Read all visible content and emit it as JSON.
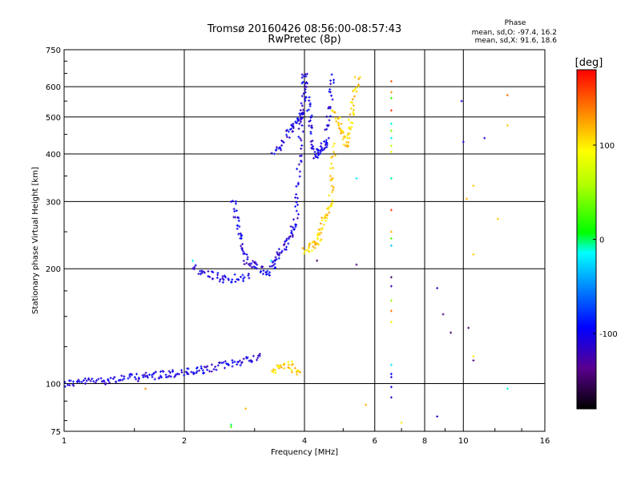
{
  "chart_data": {
    "type": "scatter",
    "title": "Tromsø 20160426 08:56:00-08:57:43",
    "subtitle": "RwPretec (8p)",
    "xlabel": "Frequency [MHz]",
    "ylabel": "Stationary phase Virtual Height [km]",
    "x_scale": "log",
    "y_scale": "log",
    "xlim": [
      1,
      16
    ],
    "ylim": [
      75,
      750
    ],
    "x_ticks": [
      1,
      2,
      4,
      6,
      8,
      10,
      16
    ],
    "x_tick_labels": [
      "1",
      "2",
      "4",
      "6",
      "8",
      "10",
      "16"
    ],
    "y_ticks": [
      75,
      100,
      200,
      300,
      400,
      500,
      600,
      750
    ],
    "y_tick_labels": [
      "75",
      "100",
      "200",
      "300",
      "400",
      "500",
      "600",
      "750"
    ],
    "grid": true,
    "phase_stats": {
      "title": "Phase",
      "o_line": "mean, sd,O: -97.4, 16.2",
      "x_line": "mean, sd,X:  91.6, 18.6"
    },
    "colorbar": {
      "label": "[deg]",
      "range": [
        -180,
        180
      ],
      "ticks": [
        100,
        0,
        -100
      ],
      "tick_labels": [
        "100",
        "0",
        "-100"
      ]
    },
    "series": [
      {
        "mode": "segments",
        "phase": -105,
        "segments": [
          {
            "f0": 1.0,
            "f1": 1.55,
            "h0": 100,
            "h1": 104,
            "n": 60
          },
          {
            "f0": 1.55,
            "f1": 2.2,
            "h0": 104,
            "h1": 108,
            "n": 55
          },
          {
            "f0": 2.2,
            "f1": 3.1,
            "h0": 108,
            "h1": 118,
            "n": 50
          },
          {
            "f0": 2.1,
            "f1": 2.5,
            "h0": 200,
            "h1": 188,
            "n": 25
          },
          {
            "f0": 2.5,
            "f1": 2.9,
            "h0": 188,
            "h1": 190,
            "n": 22
          },
          {
            "f0": 2.65,
            "f1": 2.85,
            "h0": 300,
            "h1": 210,
            "n": 35
          },
          {
            "f0": 2.85,
            "f1": 3.3,
            "h0": 210,
            "h1": 193,
            "n": 30
          },
          {
            "f0": 3.3,
            "f1": 3.8,
            "h0": 200,
            "h1": 260,
            "n": 45
          },
          {
            "f0": 3.8,
            "f1": 4.0,
            "h0": 260,
            "h1": 650,
            "n": 45
          },
          {
            "f0": 3.35,
            "f1": 3.7,
            "h0": 400,
            "h1": 460,
            "n": 20
          },
          {
            "f0": 3.7,
            "f1": 4.0,
            "h0": 460,
            "h1": 520,
            "n": 30
          },
          {
            "f0": 4.0,
            "f1": 4.25,
            "h0": 650,
            "h1": 395,
            "n": 40
          },
          {
            "f0": 4.25,
            "f1": 4.55,
            "h0": 395,
            "h1": 430,
            "n": 30
          },
          {
            "f0": 4.55,
            "f1": 4.7,
            "h0": 430,
            "h1": 640,
            "n": 25
          }
        ]
      },
      {
        "mode": "segments",
        "phase": 110,
        "segments": [
          {
            "f0": 4.0,
            "f1": 4.3,
            "h0": 222,
            "h1": 235,
            "n": 25
          },
          {
            "f0": 4.3,
            "f1": 4.65,
            "h0": 235,
            "h1": 300,
            "n": 35
          },
          {
            "f0": 4.65,
            "f1": 4.75,
            "h0": 300,
            "h1": 420,
            "n": 20
          },
          {
            "f0": 4.75,
            "f1": 5.1,
            "h0": 520,
            "h1": 420,
            "n": 30
          },
          {
            "f0": 5.1,
            "f1": 5.45,
            "h0": 420,
            "h1": 640,
            "n": 35
          },
          {
            "f0": 3.3,
            "f1": 3.7,
            "h0": 108,
            "h1": 112,
            "n": 22
          },
          {
            "f0": 3.7,
            "f1": 3.9,
            "h0": 112,
            "h1": 106,
            "n": 12
          }
        ]
      },
      {
        "mode": "points",
        "points": [
          [
            6.6,
            620,
            150
          ],
          [
            6.6,
            580,
            130
          ],
          [
            6.6,
            560,
            20
          ],
          [
            6.6,
            520,
            160
          ],
          [
            6.6,
            480,
            -10
          ],
          [
            6.6,
            460,
            40
          ],
          [
            6.6,
            440,
            -20
          ],
          [
            6.6,
            420,
            60
          ],
          [
            6.6,
            405,
            90
          ],
          [
            6.6,
            345,
            -5
          ],
          [
            6.6,
            285,
            160
          ],
          [
            6.6,
            250,
            120
          ],
          [
            6.6,
            240,
            30
          ],
          [
            6.6,
            230,
            -30
          ],
          [
            6.6,
            190,
            -150
          ],
          [
            6.6,
            180,
            -120
          ],
          [
            6.6,
            165,
            50
          ],
          [
            6.6,
            155,
            140
          ],
          [
            6.6,
            145,
            100
          ],
          [
            6.6,
            112,
            -20
          ],
          [
            6.6,
            106,
            -90
          ],
          [
            6.6,
            104,
            -110
          ],
          [
            6.6,
            98,
            -100
          ],
          [
            6.6,
            92,
            -115
          ],
          [
            7.0,
            79,
            100
          ],
          [
            8.6,
            82,
            -120
          ],
          [
            8.6,
            178,
            -120
          ],
          [
            8.9,
            152,
            -140
          ],
          [
            9.3,
            136,
            -150
          ],
          [
            9.9,
            550,
            -110
          ],
          [
            10.0,
            430,
            -110
          ],
          [
            10.3,
            140,
            -150
          ],
          [
            10.2,
            305,
            120
          ],
          [
            10.6,
            330,
            110
          ],
          [
            10.6,
            218,
            110
          ],
          [
            10.6,
            118,
            100
          ],
          [
            10.6,
            115,
            -140
          ],
          [
            11.3,
            440,
            -110
          ],
          [
            12.2,
            270,
            110
          ],
          [
            12.9,
            570,
            140
          ],
          [
            12.9,
            475,
            110
          ],
          [
            12.9,
            97,
            -10
          ],
          [
            5.7,
            88,
            120
          ],
          [
            2.85,
            86,
            120
          ],
          [
            2.62,
            77,
            30
          ],
          [
            2.62,
            78,
            0
          ],
          [
            2.1,
            210,
            -20
          ],
          [
            3.3,
            210,
            -20
          ],
          [
            5.4,
            205,
            -140
          ],
          [
            5.4,
            345,
            -20
          ],
          [
            4.3,
            210,
            -150
          ],
          [
            1.6,
            97,
            130
          ]
        ]
      }
    ]
  }
}
